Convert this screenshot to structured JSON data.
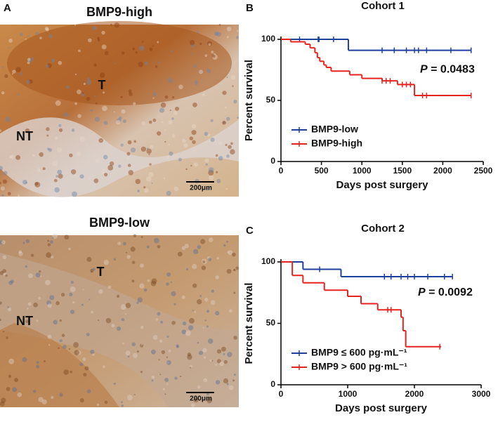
{
  "panels": [
    {
      "label": "A",
      "title": "BMP9-high",
      "regions": [
        "T",
        "NT"
      ],
      "scale_bar": "200μm"
    },
    {
      "title": "BMP9-low",
      "regions": [
        "T",
        "NT"
      ],
      "scale_bar": "200μm"
    }
  ],
  "chart_data": [
    {
      "type": "step",
      "panel": "B",
      "title": "Cohort 1",
      "x_label": "Days post surgery",
      "y_label": "Percent survival",
      "annotation_symbol": "P",
      "annotation": "= 0.0483",
      "xlim": [
        0,
        2500
      ],
      "xticks": [
        0,
        500,
        1000,
        1500,
        2000,
        2500
      ],
      "ylim": [
        0,
        100
      ],
      "yticks": [
        0,
        50,
        100
      ],
      "legend": "lower left",
      "series": [
        {
          "name": "BMP9-low",
          "color": "#1f3f9c",
          "x": [
            0,
            833,
            2350
          ],
          "values": [
            100,
            91,
            91
          ],
          "censor_x": [
            230,
            460,
            470,
            650,
            1250,
            1400,
            1550,
            1650,
            1700,
            1800,
            2100,
            2350
          ],
          "censor_values": [
            100,
            100,
            100,
            100,
            91,
            91,
            91,
            91,
            91,
            91,
            91,
            91
          ]
        },
        {
          "name": "BMP9-high",
          "color": "#e8231e",
          "x": [
            0,
            120,
            300,
            360,
            420,
            450,
            480,
            530,
            560,
            620,
            850,
            1000,
            1250,
            1440,
            1650,
            2350
          ],
          "values": [
            100,
            98,
            96,
            93,
            89,
            85,
            82,
            79,
            77,
            74,
            71,
            68,
            66,
            63,
            54,
            54
          ],
          "censor_x": [
            1250,
            1300,
            1350,
            1500,
            1550,
            1600,
            1750,
            1800,
            2350
          ],
          "censor_values": [
            66,
            66,
            66,
            63,
            63,
            63,
            54,
            54,
            54
          ]
        }
      ]
    },
    {
      "type": "step",
      "panel": "C",
      "title": "Cohort 2",
      "x_label": "Days post surgery",
      "y_label": "Percent survival",
      "annotation_symbol": "P",
      "annotation": "= 0.0092",
      "xlim": [
        0,
        3000
      ],
      "xticks": [
        0,
        1000,
        2000,
        3000
      ],
      "ylim": [
        0,
        100
      ],
      "yticks": [
        0,
        50,
        100
      ],
      "legend": "lower left",
      "series": [
        {
          "name": "BMP9 ≤ 600 pg·mL⁻¹",
          "color": "#1f3f9c",
          "x": [
            0,
            330,
            900,
            2570
          ],
          "values": [
            100,
            94,
            88,
            88
          ],
          "censor_x": [
            580,
            1550,
            1650,
            1800,
            1900,
            2000,
            2200,
            2450,
            2570
          ],
          "censor_values": [
            94,
            88,
            88,
            88,
            88,
            88,
            88,
            88,
            88
          ]
        },
        {
          "name": "BMP9 > 600 pg·mL⁻¹",
          "color": "#e8231e",
          "x": [
            0,
            170,
            330,
            650,
            1000,
            1200,
            1450,
            1800,
            1830,
            1870,
            2400
          ],
          "values": [
            100,
            89,
            83,
            77,
            72,
            66,
            61,
            55,
            44,
            31,
            31
          ],
          "censor_x": [
            1600,
            1650,
            2380
          ],
          "censor_values": [
            61,
            61,
            31
          ]
        }
      ]
    }
  ]
}
